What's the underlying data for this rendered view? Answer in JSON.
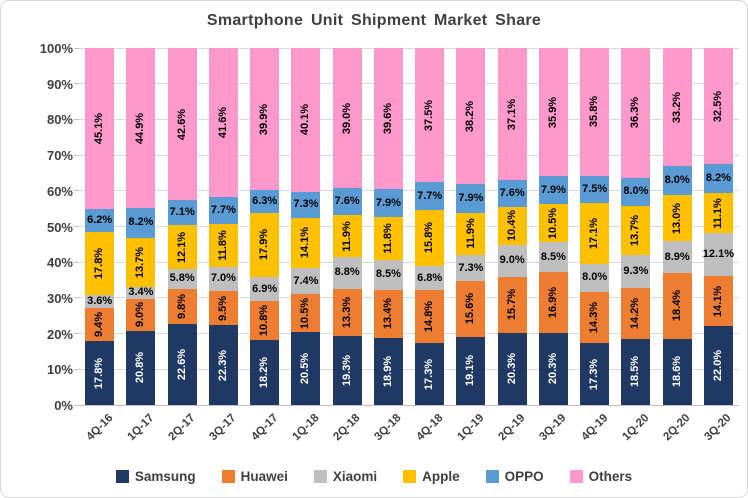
{
  "chart_data": {
    "type": "bar",
    "subtype": "stacked-100",
    "title": "Smartphone Unit Shipment Market Share",
    "categories": [
      "4Q-16",
      "1Q-17",
      "2Q-17",
      "3Q-17",
      "4Q-17",
      "1Q-18",
      "2Q-18",
      "3Q-18",
      "4Q-18",
      "1Q-19",
      "2Q-19",
      "3Q-19",
      "4Q-19",
      "1Q-20",
      "2Q-20",
      "3Q-20"
    ],
    "series": [
      {
        "name": "Samsung",
        "color": "#1F3864",
        "label_color": "#FFFFFF",
        "label_orientation": "vertical",
        "values": [
          17.8,
          20.8,
          22.6,
          22.3,
          18.2,
          20.5,
          19.3,
          18.9,
          17.3,
          19.1,
          20.3,
          20.3,
          17.3,
          18.5,
          18.6,
          22.0
        ]
      },
      {
        "name": "Huawei",
        "color": "#ED7D31",
        "label_color": "#000000",
        "label_orientation": "vertical",
        "values": [
          9.4,
          9.0,
          9.8,
          9.5,
          10.8,
          10.5,
          13.3,
          13.4,
          14.8,
          15.6,
          15.7,
          16.9,
          14.3,
          14.2,
          18.4,
          14.1
        ]
      },
      {
        "name": "Xiaomi",
        "color": "#BFBFBF",
        "label_color": "#000000",
        "label_orientation": "horizontal",
        "values": [
          3.6,
          3.4,
          5.8,
          7.0,
          6.9,
          7.4,
          8.8,
          8.5,
          6.8,
          7.3,
          9.0,
          8.5,
          8.0,
          9.3,
          8.9,
          12.1
        ]
      },
      {
        "name": "Apple",
        "color": "#FFC000",
        "label_color": "#000000",
        "label_orientation": "vertical",
        "values": [
          17.8,
          13.7,
          12.1,
          11.8,
          17.9,
          14.1,
          11.9,
          11.8,
          15.8,
          11.9,
          10.4,
          10.5,
          17.1,
          13.7,
          13.0,
          11.1
        ]
      },
      {
        "name": "OPPO",
        "color": "#5B9BD5",
        "label_color": "#000000",
        "label_orientation": "horizontal",
        "values": [
          6.2,
          8.2,
          7.1,
          7.7,
          6.3,
          7.3,
          7.6,
          7.9,
          7.7,
          7.9,
          7.6,
          7.9,
          7.5,
          8.0,
          8.0,
          8.2
        ]
      },
      {
        "name": "Others",
        "color": "#FF99CC",
        "label_color": "#000000",
        "label_orientation": "vertical",
        "values": [
          45.1,
          44.9,
          42.6,
          41.6,
          39.9,
          40.1,
          39.0,
          39.6,
          37.5,
          38.2,
          37.1,
          35.9,
          35.8,
          36.3,
          33.2,
          32.5
        ]
      }
    ],
    "y_axis": {
      "min": 0,
      "max": 100,
      "step": 10,
      "tick_labels": [
        "0%",
        "10%",
        "20%",
        "30%",
        "40%",
        "50%",
        "60%",
        "70%",
        "80%",
        "90%",
        "100%"
      ]
    },
    "grid": true,
    "gridline_color": "#D9D9D9",
    "legend_position": "bottom",
    "value_label_suffix": "%"
  }
}
